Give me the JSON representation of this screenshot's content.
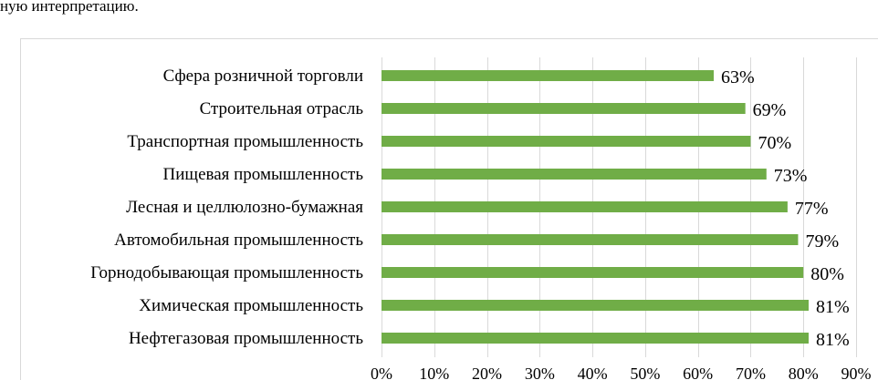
{
  "intro_text": "ную интерпретацию.",
  "chart_data": {
    "type": "bar",
    "orientation": "horizontal",
    "categories": [
      "Сфера розничной торговли",
      "Строительная отрасль",
      "Транспортная промышленность",
      "Пищевая промышленность",
      "Лесная и целлюлозно-бумажная",
      "Автомобильная промышленность",
      "Горнодобывающая промышленность",
      "Химическая промышленность",
      "Нефтегазовая промышленность"
    ],
    "values": [
      63,
      69,
      70,
      73,
      77,
      79,
      80,
      81,
      81
    ],
    "data_labels": [
      "63%",
      "69%",
      "70%",
      "73%",
      "77%",
      "79%",
      "80%",
      "81%",
      "81%"
    ],
    "xlim": [
      0,
      90
    ],
    "xticks": [
      0,
      10,
      20,
      30,
      40,
      50,
      60,
      70,
      80,
      90
    ],
    "xtick_labels": [
      "0%",
      "10%",
      "20%",
      "30%",
      "40%",
      "50%",
      "60%",
      "70%",
      "80%",
      "90%"
    ],
    "grid": true,
    "legend": "none",
    "bar_color": "#70ad47",
    "grid_color": "#d9d9d9"
  }
}
